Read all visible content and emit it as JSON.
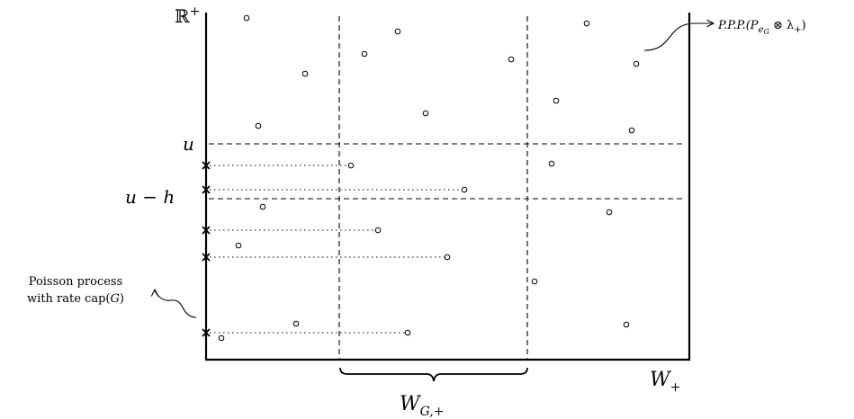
{
  "labels": {
    "y_axis": "ℝ",
    "y_axis_sup": "+",
    "level_u": "u",
    "level_u_minus_h": "u − h",
    "w_plus": "W",
    "w_plus_sub": "+",
    "w_g_plus": "W",
    "w_g_plus_sub": "G,+",
    "ppp_prefix": "P.P.P.(P",
    "ppp_sub": "e",
    "ppp_subsub": "G",
    "ppp_suffix": " ⊗ λ",
    "ppp_lambda_sub": "+",
    "ppp_close": ")",
    "poisson_line1": "Poisson process",
    "poisson_line2_prefix": "with rate cap(",
    "poisson_line2_var": "G",
    "poisson_line2_suffix": ")"
  },
  "colors": {
    "ink": "#000000",
    "background": "#ffffff"
  },
  "icons": {
    "axis_mark": "cross-marker",
    "point": "circle-marker",
    "pointer": "curved-arrow"
  }
}
